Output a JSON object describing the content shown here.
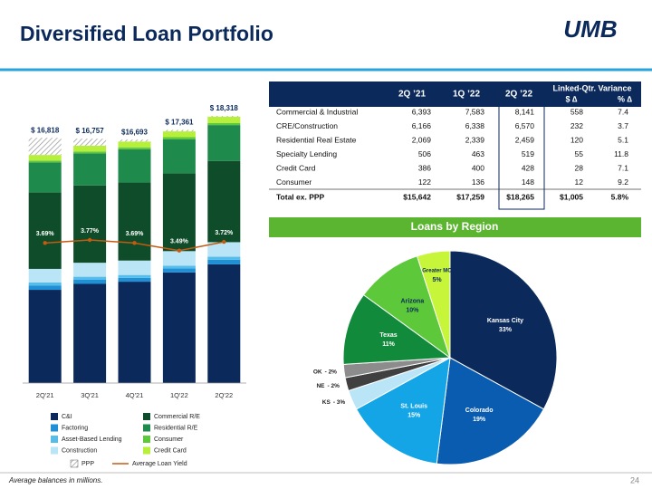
{
  "header": {
    "title": "Diversified Loan Portfolio",
    "logo": "UMB"
  },
  "chart_data": [
    {
      "type": "stacked-bar",
      "categories": [
        "2Q'21",
        "3Q'21",
        "4Q'21",
        "1Q'22",
        "2Q'22"
      ],
      "series": [
        {
          "name": "C&I",
          "color": "#0b2a5b",
          "values": [
            6393,
            6800,
            6950,
            7583,
            8141
          ]
        },
        {
          "name": "Factoring",
          "color": "#1f8fd6",
          "values": [
            300,
            280,
            260,
            280,
            320
          ]
        },
        {
          "name": "Asset-Based Lending",
          "color": "#56bde9",
          "values": [
            206,
            210,
            200,
            183,
            199
          ]
        },
        {
          "name": "Construction",
          "color": "#b9e5f7",
          "values": [
            930,
            960,
            990,
            1000,
            1000
          ]
        },
        {
          "name": "Commercial R/E",
          "color": "#0f4d2a",
          "values": [
            5236,
            5300,
            5350,
            5338,
            5570
          ]
        },
        {
          "name": "Residential R/E",
          "color": "#1e8a4c",
          "values": [
            2069,
            2200,
            2280,
            2339,
            2459
          ]
        },
        {
          "name": "Consumer",
          "color": "#5cc83a",
          "values": [
            122,
            130,
            133,
            136,
            148
          ]
        },
        {
          "name": "Credit Card",
          "color": "#b6f03a",
          "values": [
            386,
            395,
            398,
            400,
            428
          ]
        },
        {
          "name": "PPP",
          "color": "#9a9a9a",
          "values": [
            1176,
            482,
            132,
            102,
            53
          ]
        }
      ],
      "totals": [
        16818,
        16757,
        16693,
        17361,
        18318
      ],
      "total_labels": [
        "$ 16,818",
        "$ 16,757",
        "$16,693",
        "$ 17,361",
        "$ 18,318"
      ],
      "line_series": {
        "name": "Average Loan Yield",
        "color": "#c55a11",
        "values": [
          3.69,
          3.77,
          3.69,
          3.49,
          3.72
        ],
        "value_labels": [
          "3.69%",
          "3.77%",
          "3.69%",
          "3.49%",
          "3.72%"
        ]
      }
    },
    {
      "type": "pie",
      "title": "Loans by Region",
      "categories": [
        "Kansas City",
        "Colorado",
        "St. Louis",
        "KS",
        "NE",
        "OK",
        "Texas",
        "Arizona",
        "Greater MO"
      ],
      "values": [
        33,
        19,
        15,
        3,
        2,
        2,
        11,
        10,
        5
      ],
      "value_labels": [
        "33%",
        "19%",
        "15%",
        "- 3%",
        "- 2%",
        "- 2%",
        "11%",
        "10%",
        "5%"
      ],
      "colors": [
        "#0b2a5b",
        "#0a5cb0",
        "#14a5e6",
        "#b9e5f7",
        "#404040",
        "#8c8c8c",
        "#128a3c",
        "#5cc83a",
        "#c6f53a"
      ]
    }
  ],
  "table": {
    "columns": [
      "2Q ’21",
      "1Q ’22",
      "2Q ’22"
    ],
    "variance": {
      "title": "Linked-Qtr. Variance",
      "columns": [
        "$ ∆",
        "% ∆"
      ]
    },
    "rows": [
      [
        "Commercial & Industrial",
        "6,393",
        "7,583",
        "8,141",
        "558",
        "7.4"
      ],
      [
        "CRE/Construction",
        "6,166",
        "6,338",
        "6,570",
        "232",
        "3.7"
      ],
      [
        "Residential Real Estate",
        "2,069",
        "2,339",
        "2,459",
        "120",
        "5.1"
      ],
      [
        "Specialty Lending",
        "506",
        "463",
        "519",
        "55",
        "11.8"
      ],
      [
        "Credit Card",
        "386",
        "400",
        "428",
        "28",
        "7.1"
      ],
      [
        "Consumer",
        "122",
        "136",
        "148",
        "12",
        "9.2"
      ],
      [
        "Total ex. PPP",
        "$15,642",
        "$17,259",
        "$18,265",
        "$1,005",
        "5.8%"
      ]
    ]
  },
  "footer": {
    "note": "Average balances in millions.",
    "page": "24"
  }
}
